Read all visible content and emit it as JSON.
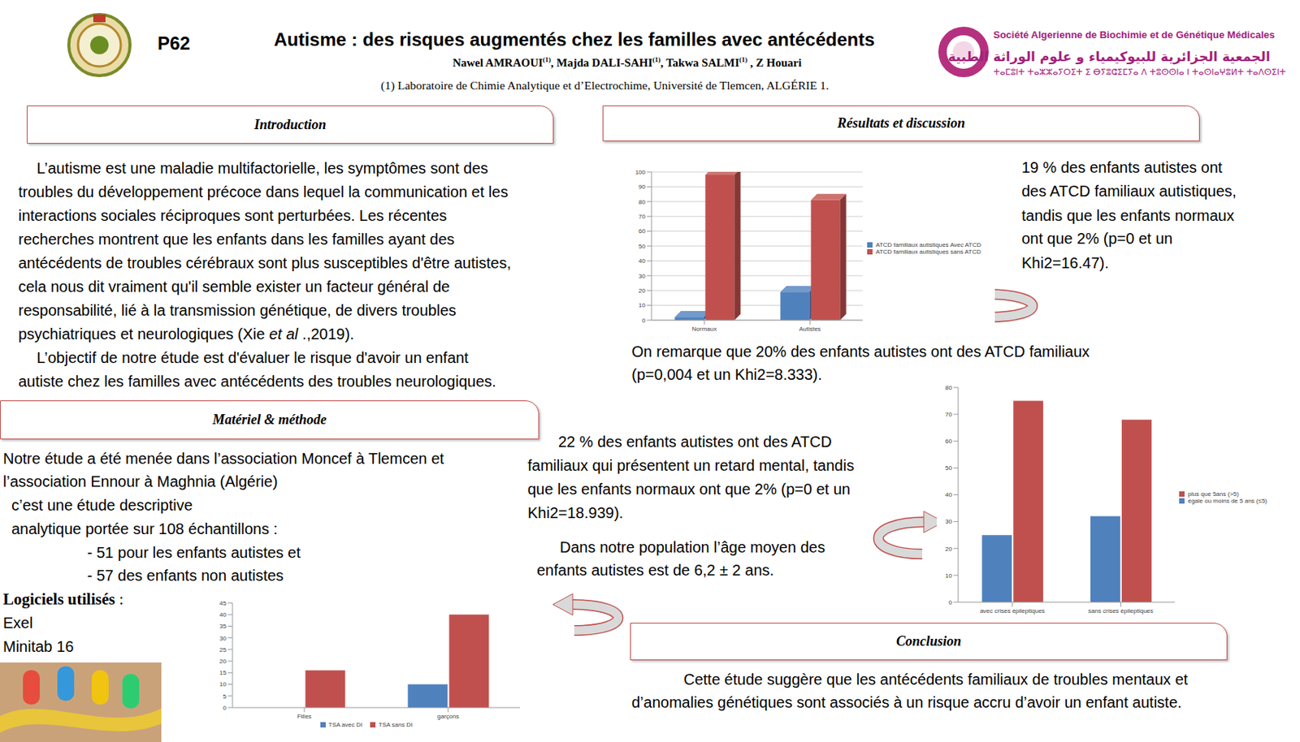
{
  "header": {
    "number": "P62",
    "title": "Autisme : des risques augmentés chez les familles avec antécédents",
    "authors": [
      {
        "text": "Nawel AMRAOUI",
        "sup": "(1)"
      },
      {
        "text": ", Majda DALI-SAHI",
        "sup": "(1)"
      },
      {
        "text": ", Takwa SALMI",
        "sup": "(1)"
      },
      {
        "text": " , Z Houari"
      }
    ],
    "affiliation": "(1) Laboratoire de Chimie Analytique et d’Electrochime, Université de Tlemcen, ALGÉRIE 1.",
    "society": {
      "fr": "Société Algerienne de Biochimie et de Génétique Médicales",
      "ar": "الجمعية الجزائرية للبيوكيمياء و علوم الوراثة الطبية",
      "tzm": "ⵜⴰⵎⵓⵏⵜ ⵜⴰⵣⵣⴰⵢⵔⵉⵜ ⵉ ⴱⵢⵓⵛⵉⵎⵢⴰ ⴷ ⵜⵓⵙⵙⵏⴰ ⵏ ⵜⴰⵙⵏⴰⵖⵓⵍⵜ ⵜⴰⴷⵙⵉⵏⵜ"
    }
  },
  "sections": {
    "introduction": {
      "heading": "Introduction",
      "lines": [
        "L’autisme est une maladie multifactorielle, les symptômes  sont des",
        "troubles du développement précoce dans lequel la communication et les",
        "interactions sociales réciproques sont perturbées. Les récentes",
        "recherches montrent que les enfants dans les familles ayant des",
        "antécédents de troubles cérébraux sont plus susceptibles d'être autistes,",
        "cela nous dit vraiment qu'il semble exister un facteur général de",
        "responsabilité, lié à la transmission génétique, de divers troubles",
        [
          "psychiatriques et neurologiques (Xie ",
          {
            "text": "et al",
            "italic": true
          },
          " .,2019)."
        ],
        "L’objectif de notre étude est d'évaluer le risque d'avoir un enfant",
        "autiste chez les familles avec antécédents des troubles neurologiques."
      ]
    },
    "methods": {
      "heading": "Matériel & méthode",
      "lines": [
        "Notre étude a été menée dans l’association Moncef à Tlemcen et",
        "l’association Ennour à Maghnia (Algérie)",
        "c’est une étude descriptive",
        "analytique portée sur 108 échantillons :",
        "- 51 pour les enfants autistes et",
        "- 57  des enfants non autistes"
      ],
      "software": {
        "label": "Logiciels utilisés",
        "sep": " :",
        "items": [
          "Exel",
          "Minitab 16"
        ]
      }
    },
    "results": {
      "heading": "Résultats et discussion",
      "texts": [
        [
          "19 % des enfants autistes ont",
          "des ATCD familiaux autistiques,",
          "tandis que les enfants normaux",
          "ont que 2% (p=0 et un",
          "Khi2=16.47)."
        ],
        [
          "On remarque que 20% des enfants autistes ont des ATCD familiaux",
          "(p=0,004 et un Khi2=8.333)."
        ],
        [
          "22 % des enfants autistes ont des ATCD",
          "familiaux qui présentent un retard mental, tandis",
          "que les enfants normaux ont que 2% (p=0 et un",
          "Khi2=18.939)."
        ],
        [
          "Dans notre population l’âge moyen des",
          "enfants autistes est de 6,2 ± 2 ans."
        ]
      ]
    },
    "conclusion": {
      "heading": "Conclusion",
      "lines": [
        "Cette étude suggère que les antécédents familiaux de troubles mentaux et",
        "d’anomalies génétiques sont associés à un risque accru d’avoir un enfant autiste."
      ]
    }
  },
  "chart_data": [
    {
      "type": "bar",
      "categories": [
        "Normaux",
        "Autistes"
      ],
      "series": [
        {
          "name": "ATCD familiaux autistiques Avec ATCD",
          "color": "#4f81bd",
          "values": [
            2,
            19
          ]
        },
        {
          "name": "ATCD familiaux autistiques sans ATCD",
          "color": "#c0504d",
          "values": [
            98,
            81
          ]
        }
      ],
      "ylim": [
        0,
        100
      ],
      "yticks": [
        0,
        10,
        20,
        30,
        40,
        50,
        60,
        70,
        80,
        90,
        100
      ],
      "grid": true,
      "legend": "right"
    },
    {
      "type": "bar",
      "categories": [
        "avec crises épileptiques",
        "sans crises épileptiques"
      ],
      "series": [
        {
          "name": "égale ou moins de 5 ans (≤5)",
          "color": "#4f81bd",
          "values": [
            25,
            32
          ]
        },
        {
          "name": "plus que 5ans (>5)",
          "color": "#c0504d",
          "values": [
            75,
            68
          ]
        }
      ],
      "ylim": [
        0,
        80
      ],
      "yticks": [
        0,
        10,
        20,
        30,
        40,
        50,
        60,
        70,
        80
      ],
      "grid": false,
      "legend": "right"
    },
    {
      "type": "bar",
      "categories": [
        "Filles",
        "garçons"
      ],
      "series": [
        {
          "name": "TSA avec DI",
          "color": "#4f81bd",
          "values": [
            0,
            10
          ]
        },
        {
          "name": "TSA sans DI",
          "color": "#c0504d",
          "values": [
            16,
            40
          ]
        }
      ],
      "ylim": [
        0,
        45
      ],
      "yticks": [
        0,
        5,
        10,
        15,
        20,
        25,
        30,
        35,
        40,
        45
      ],
      "grid": false,
      "legend": "bottom"
    }
  ]
}
